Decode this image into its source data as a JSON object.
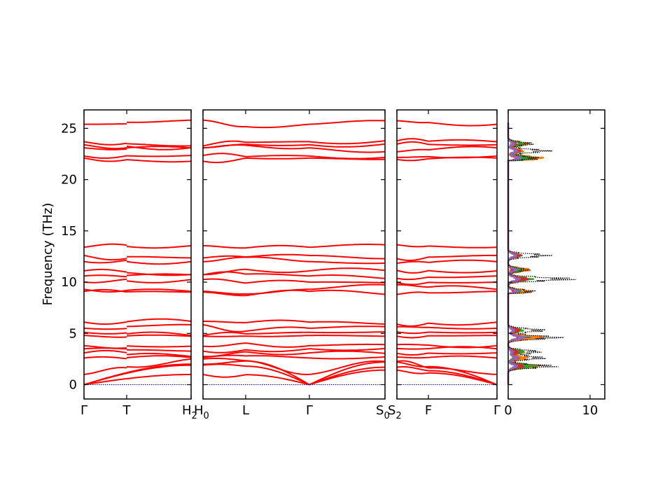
{
  "chart_data": [
    {
      "type": "line",
      "title": "",
      "ylabel": "Frequency (THz)",
      "ylim": [
        -1.4,
        26.8
      ],
      "yticks": [
        0,
        5,
        10,
        15,
        20,
        25
      ],
      "band_color": "#ff0000",
      "zero_line_color": "#0000cc",
      "segments": [
        {
          "name": "",
          "labels": [
            "Γ",
            "T",
            "H"
          ],
          "label_subscripts": [
            "",
            "",
            "2"
          ]
        },
        {
          "name": "",
          "labels": [
            "H",
            "L",
            "Γ",
            "S"
          ],
          "label_subscripts": [
            "0",
            "",
            "",
            "0"
          ]
        },
        {
          "name": "",
          "labels": [
            "S",
            "F",
            "Γ"
          ],
          "label_subscripts": [
            "2",
            "",
            ""
          ]
        }
      ],
      "bands_at_gamma_approx": [
        0,
        0,
        0,
        1.0,
        2.6,
        3.1,
        3.5,
        3.8,
        4.8,
        5.1,
        5.5,
        6.1,
        9.1,
        9.3,
        10.0,
        10.6,
        11.1,
        12.0,
        12.6,
        13.4,
        22.1,
        22.3,
        23.1,
        23.4,
        23.7,
        25.4
      ]
    },
    {
      "type": "line",
      "title": "",
      "xlim": [
        0,
        11.8
      ],
      "xticks": [
        0,
        10
      ],
      "series": [
        {
          "name": "",
          "color": "#1f77b4"
        },
        {
          "name": "",
          "color": "#ff7f0e"
        },
        {
          "name": "",
          "color": "#2ca02c"
        },
        {
          "name": "",
          "color": "#d62728"
        },
        {
          "name": "",
          "color": "#9467bd"
        },
        {
          "name": "",
          "color": "#000000",
          "style": "dotted"
        }
      ],
      "dos_peaks_thz": [
        1.8,
        2.6,
        3.2,
        4.6,
        5.3,
        9.1,
        10.3,
        11.2,
        12.6,
        22.1,
        22.8,
        23.5
      ]
    }
  ]
}
